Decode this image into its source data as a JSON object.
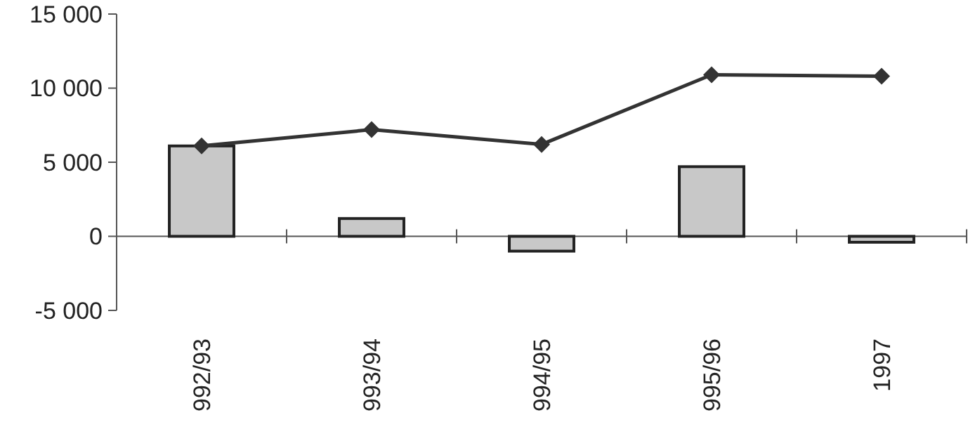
{
  "chart_data": {
    "type": "bar",
    "categories": [
      "992/93",
      "993/94",
      "994/95",
      "995/96",
      "1997"
    ],
    "series": [
      {
        "color": "#c8c8c8",
        "values": [
          6100,
          1200,
          -1000,
          4700,
          -400
        ]
      },
      {
        "type": "line",
        "color": "#333333",
        "marker": "diamond",
        "values": [
          6100,
          7200,
          6200,
          10900,
          10800
        ]
      }
    ],
    "ylim": [
      -5000,
      15000
    ],
    "yticks": [
      {
        "value": -5000,
        "label": "-5 000"
      },
      0,
      {
        "value": 5000,
        "label": "5 000"
      },
      {
        "value": 10000,
        "label": "10 000"
      },
      {
        "value": 15000,
        "label": "15 000"
      }
    ]
  }
}
